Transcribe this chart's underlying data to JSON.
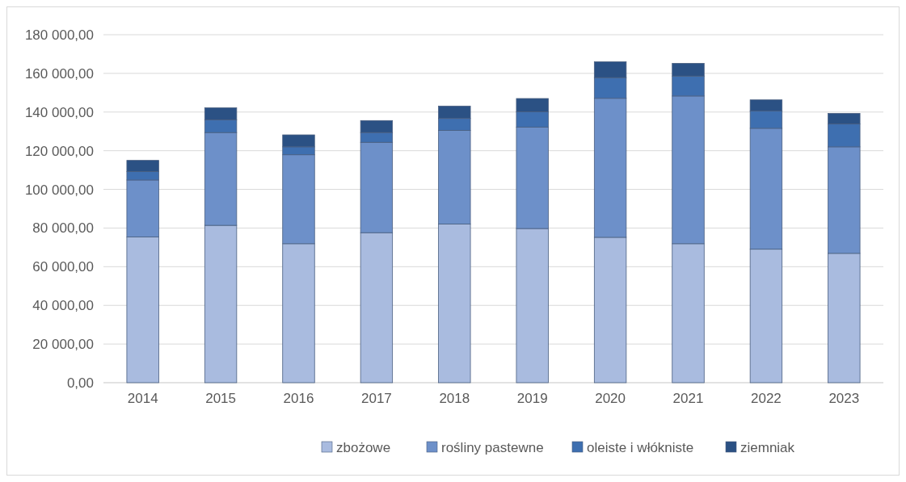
{
  "chart_data": {
    "type": "bar",
    "stacked": true,
    "categories": [
      "2014",
      "2015",
      "2016",
      "2017",
      "2018",
      "2019",
      "2020",
      "2021",
      "2022",
      "2023"
    ],
    "series": [
      {
        "name": "zbożowe",
        "color": "#a9bbdf",
        "values": [
          75400,
          81400,
          71900,
          77600,
          82100,
          79750,
          75200,
          71900,
          69050,
          66900
        ]
      },
      {
        "name": "rośliny pastewne",
        "color": "#6d90c9",
        "values": [
          29450,
          48000,
          46000,
          46750,
          48400,
          52450,
          71900,
          76400,
          62550,
          55100
        ]
      },
      {
        "name": "oleiste i włókniste",
        "color": "#3e6fb0",
        "values": [
          4400,
          6600,
          4100,
          5050,
          6200,
          7900,
          10700,
          10300,
          8900,
          11800
        ]
      },
      {
        "name": "ziemniak",
        "color": "#2b5184",
        "values": [
          5750,
          6200,
          6200,
          6200,
          6400,
          6900,
          8200,
          6600,
          5800,
          5500
        ]
      }
    ],
    "ylim": [
      0,
      180000
    ],
    "yticks": [
      {
        "value": 0,
        "label": "0,00"
      },
      {
        "value": 20000,
        "label": "20 000,00"
      },
      {
        "value": 40000,
        "label": "40 000,00"
      },
      {
        "value": 60000,
        "label": "60 000,00"
      },
      {
        "value": 80000,
        "label": "80 000,00"
      },
      {
        "value": 100000,
        "label": "100 000,00"
      },
      {
        "value": 120000,
        "label": "120 000,00"
      },
      {
        "value": 140000,
        "label": "140 000,00"
      },
      {
        "value": 160000,
        "label": "160 000,00"
      },
      {
        "value": 180000,
        "label": "180 000,00"
      }
    ],
    "grid": "y",
    "legend": "bottom"
  }
}
